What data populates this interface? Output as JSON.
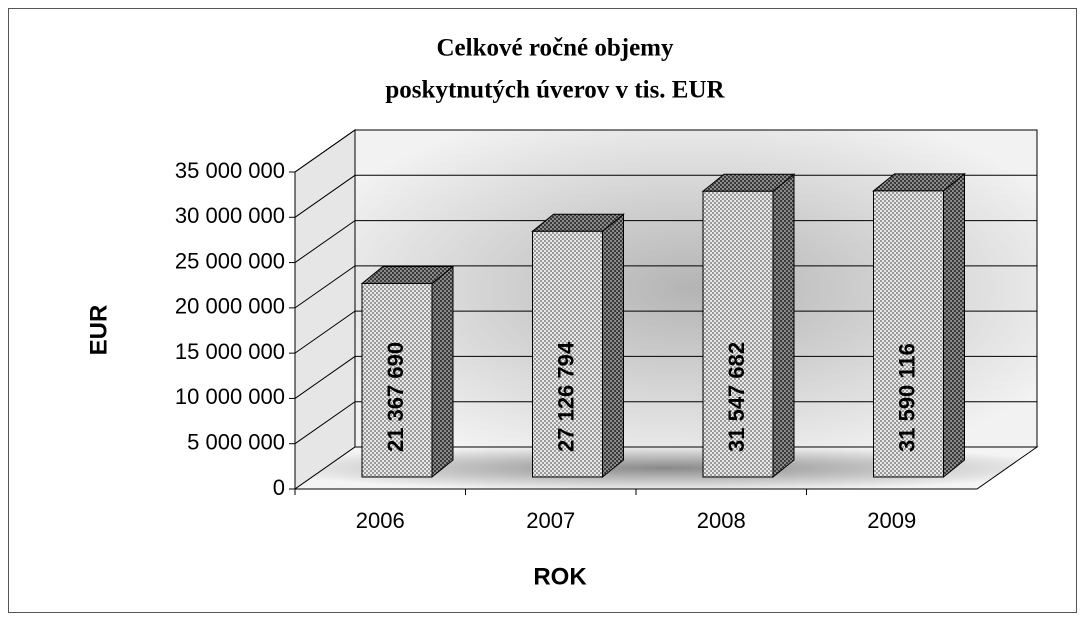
{
  "chart_data": {
    "type": "bar",
    "title": [
      "Celkové ročné objemy",
      "poskytnutých úverov v tis. EUR"
    ],
    "x_label": "ROK",
    "y_label": "EUR",
    "categories": [
      "2006",
      "2007",
      "2008",
      "2009"
    ],
    "values": [
      21367690,
      27126794,
      31547682,
      31590116
    ],
    "value_labels": [
      "21 367 690",
      "27 126 794",
      "31 547 682",
      "31 590 116"
    ],
    "color": "#d8d8d8",
    "ylim": [
      0,
      35000000
    ],
    "yticks": [
      0,
      {
        "value": 5000000,
        "label": "5 000 000"
      },
      {
        "value": 10000000,
        "label": "10 000 000"
      },
      {
        "value": 15000000,
        "label": "15 000 000"
      },
      {
        "value": 20000000,
        "label": "20 000 000"
      },
      {
        "value": 25000000,
        "label": "25 000 000"
      },
      {
        "value": 30000000,
        "label": "30 000 000"
      },
      {
        "value": 35000000,
        "label": "35 000 000"
      }
    ],
    "grid": true
  }
}
